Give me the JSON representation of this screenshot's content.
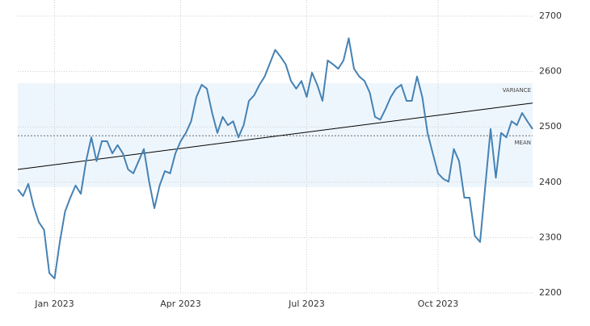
{
  "chart_data": {
    "type": "line",
    "categories": [
      null,
      null,
      null,
      null,
      null,
      null,
      null,
      "Jan 2023",
      null,
      null,
      null,
      null,
      null,
      null,
      null,
      null,
      null,
      null,
      null,
      null,
      null,
      null,
      null,
      null,
      null,
      null,
      null,
      null,
      null,
      null,
      null,
      "Apr 2023",
      null,
      null,
      null,
      null,
      null,
      null,
      null,
      null,
      null,
      null,
      null,
      null,
      null,
      null,
      null,
      null,
      null,
      null,
      null,
      null,
      null,
      null,
      null,
      "Jul 2023",
      null,
      null,
      null,
      null,
      null,
      null,
      null,
      null,
      null,
      null,
      null,
      null,
      null,
      null,
      null,
      null,
      null,
      null,
      null,
      null,
      null,
      null,
      null,
      null,
      "Oct 2023",
      null,
      null,
      null,
      null,
      null,
      null,
      null,
      null,
      null,
      null,
      null,
      null,
      null,
      null,
      null,
      null,
      null,
      null
    ],
    "values": [
      2387,
      2375,
      2397,
      2357,
      2328,
      2314,
      2236,
      2226,
      2292,
      2347,
      2372,
      2394,
      2379,
      2438,
      2481,
      2438,
      2474,
      2474,
      2452,
      2467,
      2452,
      2423,
      2416,
      2438,
      2460,
      2401,
      2353,
      2394,
      2420,
      2416,
      2452,
      2474,
      2489,
      2510,
      2554,
      2576,
      2569,
      2525,
      2489,
      2518,
      2503,
      2510,
      2481,
      2503,
      2547,
      2557,
      2576,
      2591,
      2615,
      2639,
      2627,
      2613,
      2583,
      2569,
      2583,
      2554,
      2598,
      2576,
      2547,
      2620,
      2613,
      2605,
      2620,
      2660,
      2605,
      2591,
      2583,
      2562,
      2518,
      2513,
      2532,
      2554,
      2569,
      2576,
      2547,
      2547,
      2591,
      2554,
      2489,
      2452,
      2416,
      2406,
      2401,
      2460,
      2438,
      2372,
      2372,
      2303,
      2292,
      2394,
      2496,
      2408,
      2489,
      2481,
      2510,
      2503,
      2525,
      2510,
      2496
    ],
    "color": "#4682b4",
    "ylim": [
      2200,
      2700
    ],
    "yticks": [
      2200,
      2300,
      2400,
      2500,
      2600,
      2700
    ],
    "grid": true,
    "trend_line": [
      2423,
      2543
    ],
    "trend_color": "#000000",
    "mean": 2484,
    "mean_label": "MEAN",
    "variance_band": [
      2391,
      2579
    ],
    "variance_label": "VARIANCE",
    "band_color": "#eef6fd"
  }
}
